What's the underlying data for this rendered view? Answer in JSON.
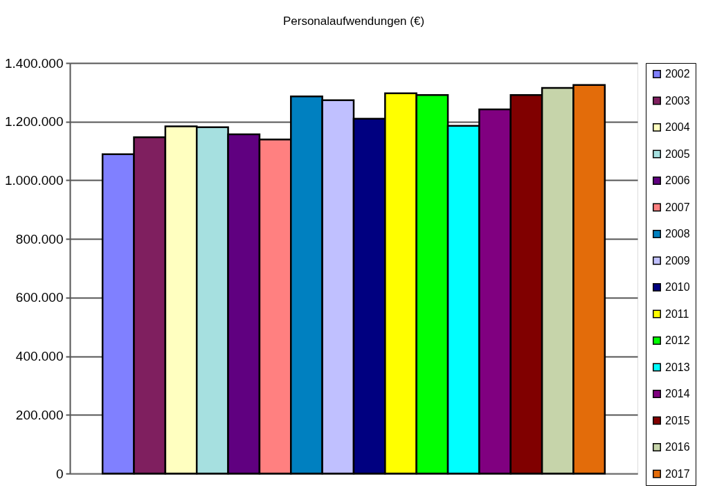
{
  "chart_data": {
    "type": "bar",
    "title": "Personalaufwendungen (€)",
    "categories": [
      null
    ],
    "series": [
      {
        "name": "2002",
        "color": "#8080ff",
        "values": [
          1089000
        ]
      },
      {
        "name": "2003",
        "color": "#7f1f5f",
        "values": [
          1147000
        ]
      },
      {
        "name": "2004",
        "color": "#ffffc0",
        "values": [
          1184000
        ]
      },
      {
        "name": "2005",
        "color": "#a6e0e0",
        "values": [
          1181000
        ]
      },
      {
        "name": "2006",
        "color": "#600080",
        "values": [
          1157000
        ]
      },
      {
        "name": "2007",
        "color": "#ff8080",
        "values": [
          1139000
        ]
      },
      {
        "name": "2008",
        "color": "#0080c0",
        "values": [
          1286000
        ]
      },
      {
        "name": "2009",
        "color": "#c0c0ff",
        "values": [
          1273000
        ]
      },
      {
        "name": "2010",
        "color": "#000080",
        "values": [
          1210000
        ]
      },
      {
        "name": "2011",
        "color": "#ffff00",
        "values": [
          1297000
        ]
      },
      {
        "name": "2012",
        "color": "#00ff00",
        "values": [
          1291000
        ]
      },
      {
        "name": "2013",
        "color": "#00ffff",
        "values": [
          1186000
        ]
      },
      {
        "name": "2014",
        "color": "#800080",
        "values": [
          1242000
        ]
      },
      {
        "name": "2015",
        "color": "#800000",
        "values": [
          1291000
        ]
      },
      {
        "name": "2016",
        "color": "#c6d4aa",
        "values": [
          1315000
        ]
      },
      {
        "name": "2017",
        "color": "#e36c0a",
        "values": [
          1325000
        ]
      }
    ],
    "ylim": [
      0,
      1400000
    ],
    "yticks": [
      0,
      {
        "value": 200000,
        "label": "200.000"
      },
      {
        "value": 400000,
        "label": "400.000"
      },
      {
        "value": 600000,
        "label": "600.000"
      },
      {
        "value": 800000,
        "label": "800.000"
      },
      {
        "value": 1000000,
        "label": "1.000.000"
      },
      {
        "value": 1200000,
        "label": "1.200.000"
      },
      {
        "value": 1400000,
        "label": "1.400.000"
      }
    ],
    "grid": "y",
    "legend": "right",
    "tick_labels": "y"
  }
}
